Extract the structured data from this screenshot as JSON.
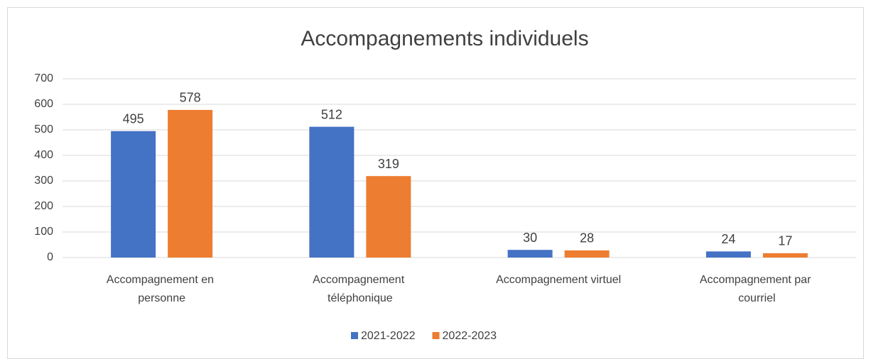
{
  "chart_data": {
    "type": "bar",
    "title": "Accompagnements individuels",
    "categories": [
      "Accompagnement en personne",
      "Accompagnement téléphonique",
      "Accompagnement virtuel",
      "Accompagnement par courriel"
    ],
    "series": [
      {
        "name": "2021-2022",
        "color": "#4472c4",
        "values": [
          495,
          512,
          30,
          24
        ]
      },
      {
        "name": "2022-2023",
        "color": "#ed7d31",
        "values": [
          578,
          319,
          28,
          17
        ]
      }
    ],
    "ylim": [
      0,
      700
    ],
    "yticks": [
      0,
      100,
      200,
      300,
      400,
      500,
      600,
      700
    ],
    "grid": true,
    "legend": "bottom"
  }
}
